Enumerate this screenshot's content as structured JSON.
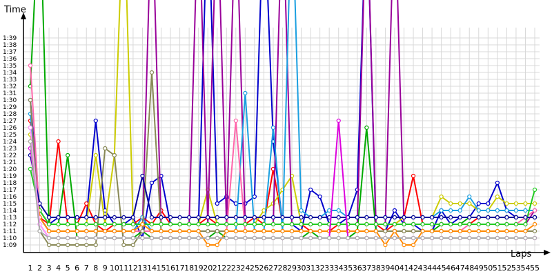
{
  "chart_data": {
    "type": "line",
    "xlabel": "Laps",
    "ylabel": "Time",
    "grid": true,
    "legend": "none",
    "x": [
      1,
      2,
      3,
      4,
      5,
      6,
      7,
      8,
      9,
      10,
      11,
      12,
      13,
      14,
      15,
      16,
      17,
      18,
      19,
      20,
      21,
      22,
      23,
      24,
      25,
      26,
      27,
      28,
      29,
      30,
      31,
      32,
      33,
      34,
      35,
      36,
      37,
      38,
      39,
      40,
      41,
      42,
      43,
      44,
      45,
      46,
      47,
      48,
      49,
      50,
      51,
      52,
      53,
      54,
      55
    ],
    "x_tick_labels": [
      "1",
      "2",
      "3",
      "4",
      "5",
      "6",
      "7",
      "8",
      "9",
      "10",
      "11",
      "12",
      "13",
      "14",
      "15",
      "16",
      "17",
      "18",
      "19",
      "20",
      "21",
      "22",
      "23",
      "24",
      "25",
      "26",
      "27",
      "28",
      "29",
      "30",
      "31",
      "32",
      "33",
      "34",
      "35",
      "36",
      "37",
      "38",
      "39",
      "40",
      "41",
      "42",
      "43",
      "44",
      "45",
      "46",
      "47",
      "48",
      "49",
      "50",
      "51",
      "52",
      "53",
      "54",
      "55"
    ],
    "y_unit": "seconds",
    "y_tick_labels": [
      "1:09",
      "1:10",
      "1:11",
      "1:12",
      "1:13",
      "1:14",
      "1:15",
      "1:16",
      "1:17",
      "1:18",
      "1:19",
      "1:20",
      "1:21",
      "1:22",
      "1:23",
      "1:24",
      "1:25",
      "1:26",
      "1:27",
      "1:28",
      "1:29",
      "1:30",
      "1:31",
      "1:32",
      "1:33",
      "1:34",
      "1:35",
      "1:36",
      "1:37",
      "1:38",
      "1:39"
    ],
    "y_tick_values": [
      69,
      70,
      71,
      72,
      73,
      74,
      75,
      76,
      77,
      78,
      79,
      80,
      81,
      82,
      83,
      84,
      85,
      86,
      87,
      88,
      89,
      90,
      91,
      92,
      93,
      94,
      95,
      96,
      97,
      98,
      99
    ],
    "ylim": [
      68,
      104
    ],
    "series": [
      {
        "color": "#0000cc",
        "values": [
          90,
          74,
          72,
          73,
          73,
          73,
          73,
          87,
          74,
          72,
          72,
          73,
          70,
          78,
          79,
          72,
          72,
          72,
          72,
          120,
          75,
          76,
          75,
          75,
          76,
          120,
          84,
          72,
          72,
          71,
          77,
          76,
          72,
          72,
          73,
          77,
          120,
          71,
          71,
          74,
          72,
          72,
          71,
          71,
          74,
          72,
          73,
          73,
          75,
          75,
          78,
          74,
          73,
          73,
          73
        ]
      },
      {
        "color": "#ff0000",
        "values": [
          87,
          73,
          72,
          84,
          72,
          72,
          75,
          72,
          71,
          72,
          72,
          72,
          73,
          72,
          74,
          72,
          72,
          72,
          72,
          73,
          72,
          72,
          72,
          72,
          73,
          72,
          80,
          72,
          72,
          72,
          71,
          71,
          71,
          72,
          72,
          72,
          72,
          72,
          71,
          72,
          73,
          79,
          72,
          72,
          72,
          72,
          72,
          72,
          73,
          73,
          73,
          73,
          73,
          73,
          73
        ]
      },
      {
        "color": "#00aa00",
        "values": [
          92,
          120,
          72,
          72,
          82,
          70,
          70,
          70,
          70,
          70,
          70,
          70,
          71,
          70,
          70,
          70,
          70,
          70,
          70,
          70,
          71,
          70,
          70,
          70,
          70,
          70,
          70,
          70,
          70,
          70,
          71,
          70,
          70,
          70,
          70,
          71,
          86,
          71,
          71,
          71,
          71,
          71,
          71,
          71,
          72,
          72,
          72,
          73,
          73,
          73,
          73,
          73,
          73,
          73,
          73
        ]
      },
      {
        "color": "#cccc00",
        "values": [
          85,
          74,
          72,
          72,
          72,
          72,
          72,
          82,
          72,
          82,
          120,
          72,
          72,
          72,
          72,
          72,
          72,
          72,
          72,
          77,
          72,
          72,
          72,
          72,
          72,
          74,
          75,
          77,
          79,
          72,
          72,
          72,
          72,
          72,
          72,
          72,
          72,
          72,
          72,
          72,
          73,
          73,
          73,
          73,
          76,
          75,
          75,
          75,
          74,
          74,
          76,
          75,
          75,
          75,
          75
        ]
      },
      {
        "color": "#990099",
        "values": [
          86,
          73,
          71,
          71,
          71,
          71,
          71,
          71,
          71,
          71,
          71,
          71,
          71,
          120,
          72,
          72,
          72,
          72,
          120,
          72,
          120,
          72,
          120,
          72,
          72,
          72,
          72,
          120,
          72,
          72,
          72,
          72,
          72,
          72,
          72,
          72,
          120,
          72,
          72,
          120,
          72,
          72,
          72,
          72,
          72,
          72,
          72,
          72,
          72,
          72,
          72,
          72,
          72,
          72,
          74
        ]
      },
      {
        "color": "#1a9fe0",
        "values": [
          88,
          73,
          71,
          71,
          71,
          71,
          71,
          71,
          71,
          71,
          71,
          71,
          73,
          71,
          71,
          71,
          71,
          71,
          71,
          71,
          71,
          71,
          71,
          91,
          71,
          71,
          86,
          71,
          120,
          74,
          73,
          73,
          74,
          74,
          73,
          73,
          73,
          73,
          73,
          73,
          73,
          73,
          73,
          73,
          74,
          74,
          74,
          76,
          74,
          74,
          74,
          74,
          74,
          74,
          74
        ]
      },
      {
        "color": "#ff66aa",
        "values": [
          95,
          73,
          71,
          71,
          71,
          71,
          71,
          71,
          71,
          71,
          71,
          71,
          71,
          71,
          71,
          71,
          71,
          71,
          71,
          71,
          71,
          71,
          87,
          71,
          71,
          71,
          71,
          71,
          71,
          71,
          71,
          71,
          71,
          71,
          71,
          71,
          71,
          71,
          71,
          71,
          71,
          71,
          71,
          71,
          71,
          71,
          71,
          72,
          72,
          72,
          72,
          72,
          72,
          73,
          74
        ]
      },
      {
        "color": "#888855",
        "values": [
          90,
          71,
          69,
          69,
          69,
          69,
          69,
          69,
          83,
          82,
          69,
          69,
          71,
          94,
          71,
          71,
          71,
          71,
          71,
          71,
          71,
          71,
          71,
          71,
          71,
          71,
          71,
          71,
          71,
          71,
          71,
          71,
          71,
          71,
          71,
          71,
          71,
          71,
          71,
          71,
          71,
          71,
          71,
          71,
          71,
          71,
          71,
          71,
          71,
          71,
          71,
          71,
          71,
          71,
          71
        ]
      },
      {
        "color": "#22cc22",
        "values": [
          80,
          74,
          72,
          72,
          72,
          72,
          72,
          72,
          72,
          72,
          72,
          72,
          72,
          72,
          72,
          72,
          72,
          72,
          72,
          72,
          72,
          72,
          72,
          72,
          72,
          72,
          72,
          72,
          72,
          72,
          72,
          72,
          72,
          72,
          72,
          72,
          72,
          72,
          72,
          72,
          72,
          72,
          72,
          72,
          72,
          72,
          72,
          72,
          72,
          72,
          72,
          72,
          72,
          72,
          77
        ]
      },
      {
        "color": "#ff8800",
        "values": [
          84,
          73,
          71,
          71,
          71,
          71,
          71,
          71,
          71,
          71,
          71,
          71,
          72,
          71,
          71,
          71,
          71,
          71,
          71,
          69,
          69,
          71,
          71,
          71,
          71,
          71,
          71,
          71,
          71,
          71,
          71,
          71,
          71,
          71,
          71,
          71,
          71,
          71,
          69,
          71,
          69,
          69,
          71,
          71,
          71,
          71,
          71,
          71,
          71,
          71,
          71,
          71,
          71,
          71,
          72
        ]
      },
      {
        "color": "#000099",
        "values": [
          82,
          75,
          73,
          73,
          73,
          73,
          73,
          73,
          73,
          73,
          73,
          73,
          79,
          73,
          73,
          73,
          73,
          73,
          73,
          73,
          73,
          73,
          73,
          73,
          73,
          73,
          73,
          73,
          73,
          73,
          73,
          73,
          73,
          73,
          73,
          73,
          73,
          73,
          73,
          73,
          73,
          73,
          73,
          73,
          73,
          73,
          73,
          73,
          73,
          73,
          73,
          73,
          73,
          73,
          73
        ]
      },
      {
        "color": "#dd00dd",
        "values": [
          83,
          72,
          70,
          70,
          70,
          70,
          70,
          70,
          70,
          70,
          70,
          70,
          70,
          70,
          70,
          70,
          70,
          70,
          70,
          70,
          70,
          70,
          70,
          70,
          70,
          70,
          70,
          70,
          70,
          70,
          70,
          70,
          70,
          87,
          70,
          70,
          70,
          70,
          70,
          70,
          70,
          70,
          70,
          70,
          70,
          70,
          70,
          70,
          70,
          70,
          70,
          70,
          70,
          70,
          70
        ]
      },
      {
        "color": "#ff99ff",
        "values": [
          86,
          72,
          70,
          70,
          70,
          70,
          70,
          70,
          70,
          70,
          70,
          70,
          70,
          70,
          70,
          70,
          70,
          70,
          70,
          70,
          70,
          70,
          70,
          70,
          70,
          70,
          70,
          70,
          70,
          70,
          70,
          70,
          70,
          70,
          70,
          70,
          70,
          70,
          70,
          70,
          70,
          70,
          70,
          70,
          70,
          70,
          70,
          70,
          70,
          70,
          70,
          70,
          70,
          70,
          70
        ]
      },
      {
        "color": "#aaaaaa",
        "values": [
          84,
          71,
          70,
          70,
          70,
          70,
          70,
          70,
          70,
          70,
          70,
          70,
          70,
          70,
          70,
          70,
          70,
          70,
          70,
          70,
          70,
          70,
          70,
          70,
          70,
          70,
          70,
          70,
          70,
          70,
          70,
          70,
          70,
          70,
          70,
          70,
          70,
          70,
          70,
          70,
          70,
          70,
          70,
          70,
          70,
          70,
          70,
          70,
          70,
          70,
          70,
          70,
          70,
          70,
          70
        ]
      }
    ]
  }
}
